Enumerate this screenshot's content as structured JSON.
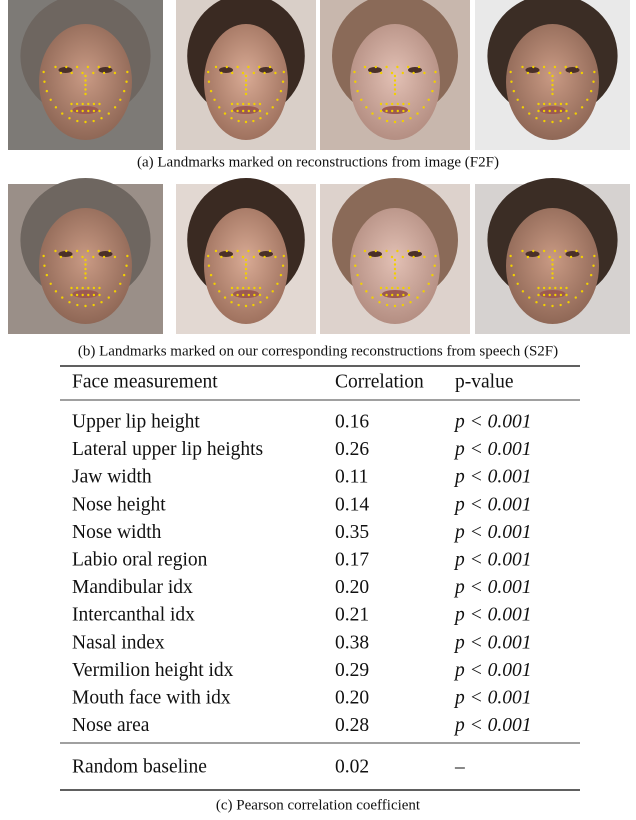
{
  "figure": {
    "captions": {
      "a": "(a) Landmarks marked on reconstructions from image (F2F)",
      "b": "(b) Landmarks marked on our corresponding reconstructions from speech (S2F)",
      "c": "(c) Pearson correlation coefficient"
    },
    "table": {
      "header": [
        "Face measurement",
        "Correlation",
        "p-value"
      ],
      "rows": [
        [
          "Upper lip height",
          "0.16",
          "p < 0.001"
        ],
        [
          "Lateral upper lip heights",
          "0.26",
          "p < 0.001"
        ],
        [
          "Jaw width",
          "0.11",
          "p < 0.001"
        ],
        [
          "Nose height",
          "0.14",
          "p < 0.001"
        ],
        [
          "Nose width",
          "0.35",
          "p < 0.001"
        ],
        [
          "Labio oral region",
          "0.17",
          "p < 0.001"
        ],
        [
          "Mandibular idx",
          "0.20",
          "p < 0.001"
        ],
        [
          "Intercanthal idx",
          "0.21",
          "p < 0.001"
        ],
        [
          "Nasal index",
          "0.38",
          "p < 0.001"
        ],
        [
          "Vermilion height idx",
          "0.29",
          "p < 0.001"
        ],
        [
          "Mouth face with idx",
          "0.20",
          "p < 0.001"
        ],
        [
          "Nose area",
          "0.28",
          "p < 0.001"
        ]
      ],
      "baseline": [
        "Random baseline",
        "0.02",
        "–"
      ]
    }
  }
}
